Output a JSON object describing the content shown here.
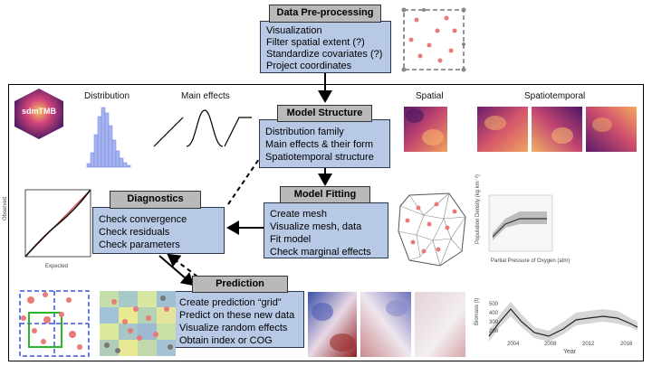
{
  "preprocessing": {
    "title": "Data Pre-processing",
    "items": [
      "Visualization",
      "Filter spatial extent (?)",
      "Standardize covariates (?)",
      "Project coordinates"
    ]
  },
  "model_structure": {
    "title": "Model Structure",
    "items": [
      "Distribution family",
      "Main effects & their form",
      "Spatiotemporal structure"
    ]
  },
  "model_fitting": {
    "title": "Model Fitting",
    "items": [
      "Create mesh",
      "Visualize mesh, data",
      "Fit model",
      "Check marginal effects"
    ]
  },
  "diagnostics": {
    "title": "Diagnostics",
    "items": [
      "Check convergence",
      "Check residuals",
      "Check parameters"
    ]
  },
  "prediction": {
    "title": "Prediction",
    "items": [
      "Create prediction “grid”",
      "Predict on these new data",
      "Visualize random effects",
      "Obtain index or COG"
    ]
  },
  "labels": {
    "distribution": "Distribution",
    "main_effects": "Main effects",
    "spatial": "Spatial",
    "spatiotemporal": "Spatiotemporal",
    "logo": "sdmTMB"
  },
  "qq_plot": {
    "xlabel": "Expected",
    "ylabel": "Observed"
  },
  "effect_plot": {
    "xlabel": "Partial Pressure of Oxygen (atm)",
    "ylabel": "Population Density (kg km⁻²)"
  },
  "index_plot": {
    "xlabel": "Year",
    "ylabel": "Biomass (t)",
    "xticks": [
      "2004",
      "2008",
      "2012",
      "2016"
    ],
    "yticks": [
      "500",
      "400",
      "300",
      "200"
    ]
  },
  "colors": {
    "box_fill": "#b8c9e6",
    "title_fill": "#b9b9b9",
    "point": "#e87a7a",
    "frame": "#000000"
  }
}
